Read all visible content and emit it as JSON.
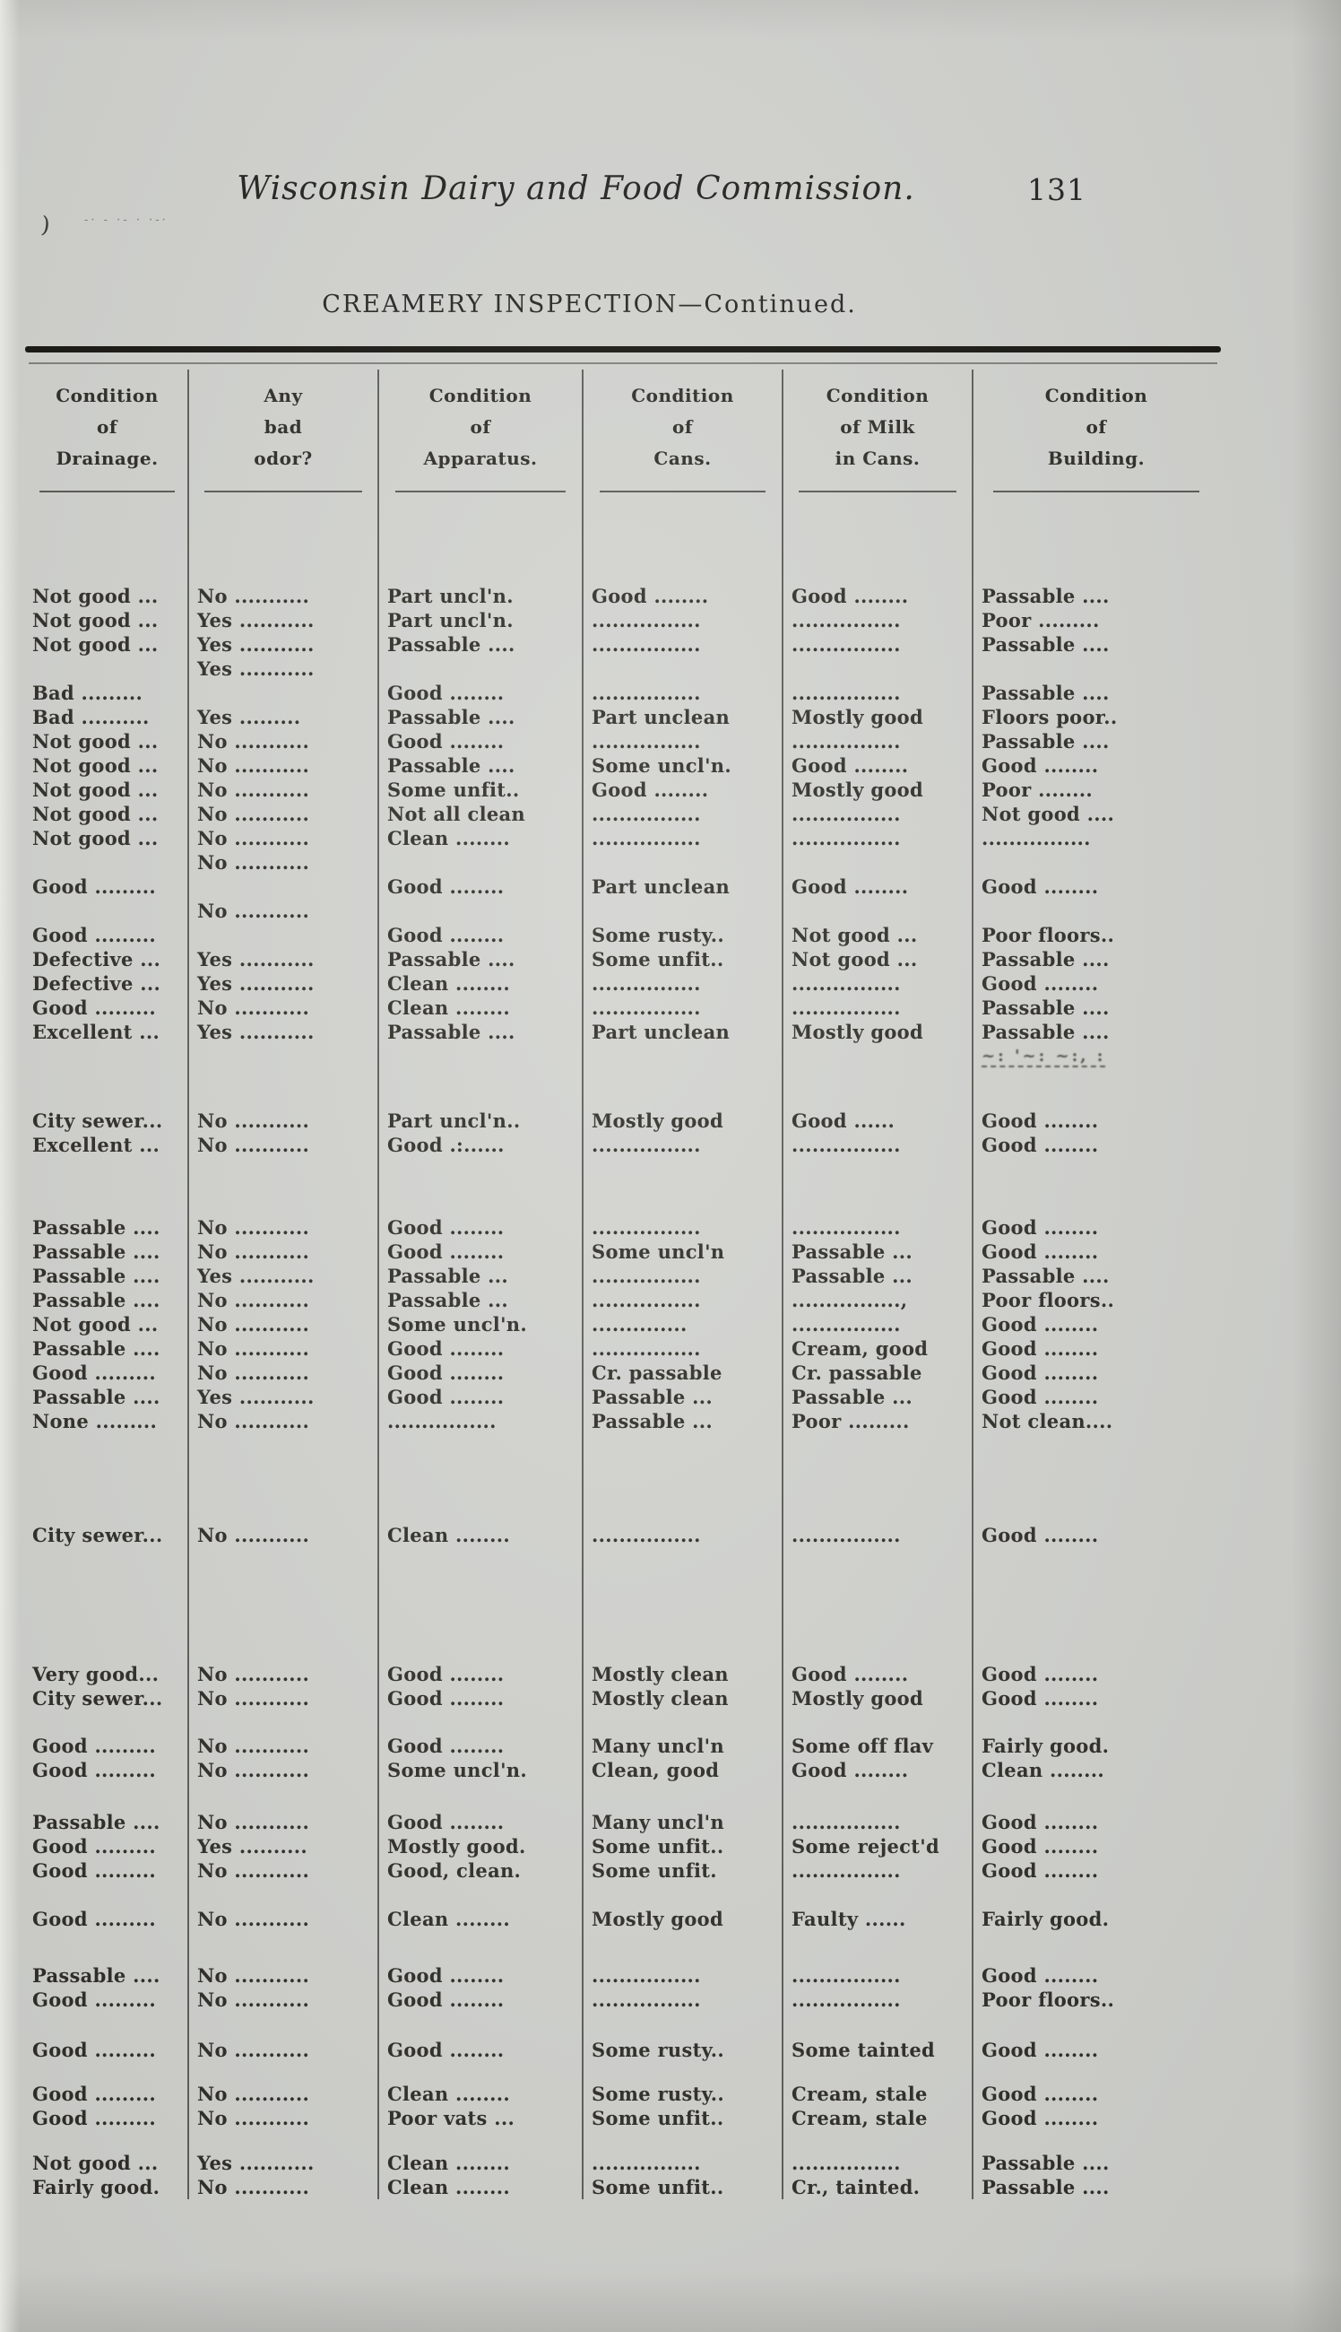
{
  "running_head": {
    "title": "Wisconsin Dairy and Food Commission.",
    "page_number": "131"
  },
  "section_title": "CREAMERY INSPECTION—Continued.",
  "artifacts": {
    "margin_tick": ")",
    "margin_dashes": "-· -  ·-  · ·-·"
  },
  "colors": {
    "paper": "#d2d3cf",
    "ink": "#2e2c26",
    "rule": "#15140f"
  },
  "table": {
    "column_keys": [
      "drainage",
      "odor",
      "apparatus",
      "cans",
      "milk",
      "building"
    ],
    "columns": [
      {
        "l1": "Condition",
        "l2": "of",
        "l3": "Drainage."
      },
      {
        "l1": "Any",
        "l2": "bad",
        "l3": "odor?"
      },
      {
        "l1": "Condition",
        "l2": "of",
        "l3": "Apparatus."
      },
      {
        "l1": "Condition",
        "l2": "of",
        "l3": "Cans."
      },
      {
        "l1": "Condition",
        "l2": "of Milk",
        "l3": "in Cans."
      },
      {
        "l1": "Condition",
        "l2": "of",
        "l3": "Building."
      }
    ],
    "rows": [
      {
        "gap": 95,
        "cells": [
          "Not good ...",
          "No ...........",
          "Part uncl'n.",
          "Good ........",
          "Good ........",
          "Passable ...."
        ]
      },
      {
        "cells": [
          "Not good ...",
          "Yes ...........",
          "Part uncl'n.",
          "................",
          "................",
          "Poor ........."
        ]
      },
      {
        "cells": [
          "Not good ...",
          "Yes ...........",
          "Passable ....",
          "................",
          "................",
          "Passable ...."
        ]
      },
      {
        "cells": [
          "",
          "Yes ...........",
          "",
          "",
          "",
          ""
        ]
      },
      {
        "cells": [
          "Bad .........",
          "",
          "Good ........",
          "................",
          "................",
          "Passable ...."
        ]
      },
      {
        "cells": [
          "Bad ..........",
          "Yes .........",
          "Passable ....",
          "Part unclean",
          "Mostly good",
          "Floors poor.."
        ]
      },
      {
        "cells": [
          "Not good ...",
          "No ...........",
          "Good ........",
          "................",
          "................",
          "Passable ...."
        ]
      },
      {
        "cells": [
          "Not good ...",
          "No ...........",
          "Passable ....",
          "Some uncl'n.",
          "Good ........",
          "Good ........"
        ]
      },
      {
        "cells": [
          "Not good ...",
          "No ...........",
          "Some unfit..",
          "Good ........",
          "Mostly good",
          "Poor ........"
        ]
      },
      {
        "cells": [
          "Not good ...",
          "No ...........",
          "Not all clean",
          "................",
          "................",
          "Not good ...."
        ]
      },
      {
        "cells": [
          "Not good ...",
          "No ...........",
          "Clean ........",
          "................",
          "................",
          "................"
        ]
      },
      {
        "cells": [
          "",
          "No ...........",
          "",
          "",
          "",
          ""
        ]
      },
      {
        "cells": [
          "Good .........",
          "",
          "Good ........",
          "Part unclean",
          "Good ........",
          "Good ........"
        ]
      },
      {
        "cells": [
          "",
          "No ...........",
          "",
          "",
          "",
          ""
        ]
      },
      {
        "cells": [
          "Good .........",
          "",
          "Good ........",
          "Some rusty..",
          "Not good ...",
          "Poor floors.."
        ]
      },
      {
        "cells": [
          "Defective ...",
          "Yes ...........",
          "Passable ....",
          "Some unfit..",
          "Not good ...",
          "Passable ...."
        ]
      },
      {
        "cells": [
          "Defective ...",
          "Yes ...........",
          "Clean ........",
          "................",
          "................",
          "Good ........"
        ]
      },
      {
        "cells": [
          "Good .........",
          "No ...........",
          "Clean ........",
          "................",
          "................",
          "Passable ...."
        ]
      },
      {
        "cells": [
          "Excellent ...",
          "Yes ...........",
          "Passable ....",
          "Part unclean",
          "Mostly good",
          "Passable ...."
        ]
      },
      {
        "smudge": true,
        "cells": [
          "",
          "",
          "",
          "",
          "",
          "~: '~: ~:, :"
        ]
      },
      {
        "gap": 45,
        "cells": [
          "City sewer...",
          "No ...........",
          "Part uncl'n..",
          "Mostly good",
          "Good ......",
          "Good ........"
        ]
      },
      {
        "cells": [
          "Excellent ...",
          "No ...........",
          "Good .:......",
          "................",
          "................",
          "Good ........"
        ]
      },
      {
        "gap": 65,
        "cells": [
          "Passable ....",
          "No ...........",
          "Good ........",
          "................",
          "................",
          "Good ........"
        ]
      },
      {
        "cells": [
          "Passable ....",
          "No ...........",
          "Good ........",
          "Some uncl'n",
          "Passable ...",
          "Good ........"
        ]
      },
      {
        "cells": [
          "Passable ....",
          "Yes ...........",
          "Passable ...",
          "................",
          "Passable ...",
          "Passable ...."
        ]
      },
      {
        "cells": [
          "Passable ....",
          "No ...........",
          "Passable ...",
          "................",
          "................,",
          "Poor floors.."
        ]
      },
      {
        "cells": [
          "Not good ...",
          "No ...........",
          "Some uncl'n.",
          "..............",
          "................",
          "Good ........"
        ]
      },
      {
        "cells": [
          "Passable ....",
          "No ...........",
          "Good ........",
          "................",
          "Cream, good",
          "Good ........"
        ]
      },
      {
        "cells": [
          "Good .........",
          "No ...........",
          "Good ........",
          "Cr. passable",
          "Cr. passable",
          "Good ........"
        ]
      },
      {
        "cells": [
          "Passable ....",
          "Yes ...........",
          "Good ........",
          "Passable ...",
          "Passable ...",
          "Good ........"
        ]
      },
      {
        "cells": [
          "None .........",
          "No ...........",
          "................",
          "Passable ...",
          "Poor .........",
          "Not clean...."
        ]
      },
      {
        "gap": 100,
        "cells": [
          "City sewer...",
          "No ...........",
          "Clean ........",
          "................",
          "................",
          "Good ........"
        ]
      },
      {
        "gap": 128,
        "cells": [
          "Very good...",
          "No ...........",
          "Good ........",
          "Mostly clean",
          "Good ........",
          "Good ........"
        ]
      },
      {
        "cells": [
          "City sewer...",
          "No ...........",
          "Good ........",
          "Mostly clean",
          "Mostly good",
          "Good ........"
        ]
      },
      {
        "gap": 26,
        "cells": [
          "Good .........",
          "No ...........",
          "Good ........",
          "Many uncl'n",
          "Some off flav",
          "Fairly good."
        ]
      },
      {
        "cells": [
          "Good .........",
          "No ...........",
          "Some uncl'n.",
          "Clean, good",
          "Good ........",
          "Clean ........"
        ]
      },
      {
        "gap": 31,
        "cells": [
          "Passable ....",
          "No ...........",
          "Good ........",
          "Many uncl'n",
          "................",
          "Good ........"
        ]
      },
      {
        "cells": [
          "Good .........",
          "Yes ..........",
          "Mostly good.",
          "Some unfit..",
          "Some reject'd",
          "Good ........"
        ]
      },
      {
        "cells": [
          "Good .........",
          "No ...........",
          "Good, clean.",
          "Some unfit.",
          "................",
          "Good ........"
        ]
      },
      {
        "gap": 27,
        "cells": [
          "Good .........",
          "No ...........",
          "Clean ........",
          "Mostly good",
          "Faulty ......",
          "Fairly good."
        ]
      },
      {
        "gap": 36,
        "cells": [
          "Passable ....",
          "No ...........",
          "Good ........",
          "................",
          "................",
          "Good ........"
        ]
      },
      {
        "cells": [
          "Good .........",
          "No ...........",
          "Good ........",
          "................",
          "................",
          "Poor floors.."
        ]
      },
      {
        "gap": 29,
        "cells": [
          "Good .........",
          "No ...........",
          "Good ........",
          "Some rusty..",
          "Some tainted",
          "Good ........"
        ]
      },
      {
        "gap": 22,
        "cells": [
          "Good .........",
          "No ...........",
          "Clean ........",
          "Some rusty..",
          "Cream, stale",
          "Good ........"
        ]
      },
      {
        "cells": [
          "Good .........",
          "No ...........",
          "Poor vats ...",
          "Some unfit..",
          "Cream, stale",
          "Good ........"
        ]
      },
      {
        "gap": 23,
        "cells": [
          "Not good ...",
          "Yes ...........",
          "Clean ........",
          "................",
          "................",
          "Passable ...."
        ]
      },
      {
        "cells": [
          "Fairly good.",
          "No ...........",
          "Clean ........",
          "Some unfit..",
          "Cr., tainted.",
          "Passable ...."
        ]
      }
    ]
  }
}
